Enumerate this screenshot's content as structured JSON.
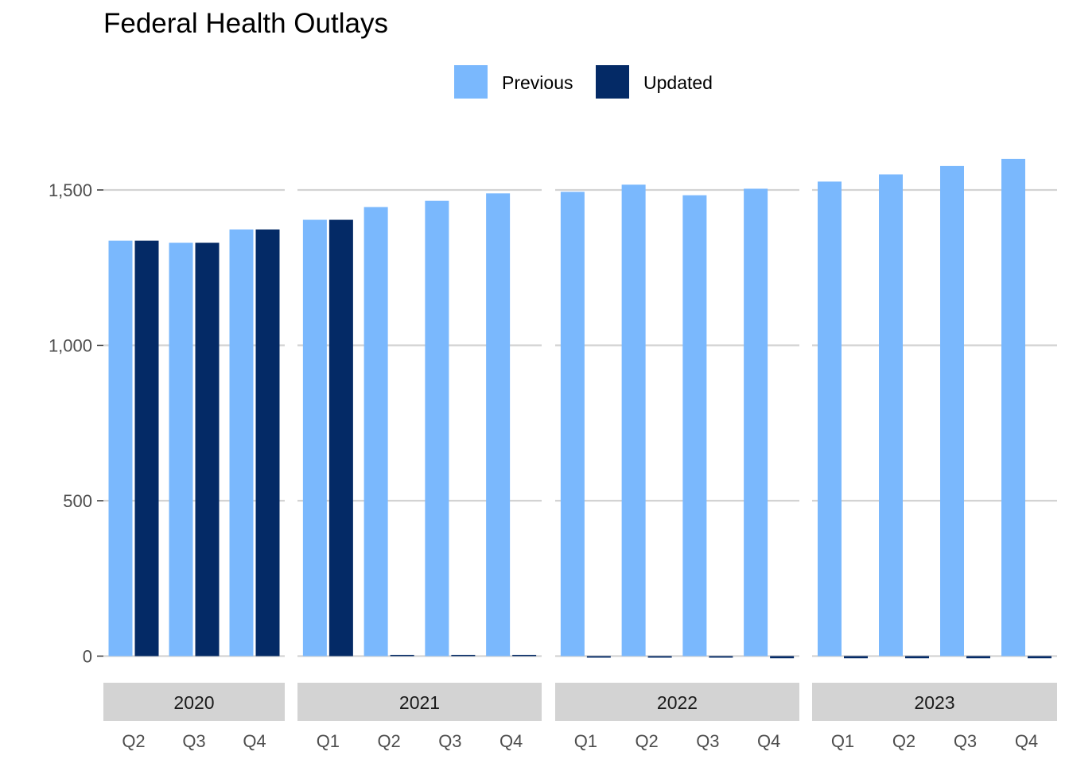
{
  "chart_data": {
    "type": "bar",
    "title": "Federal Health Outlays",
    "xlabel": "",
    "ylabel": "",
    "ylim": [
      0,
      1650
    ],
    "y_ticks": [
      0,
      500,
      1000,
      1500
    ],
    "y_tick_labels": [
      "0",
      "500",
      "1,000",
      "1,500"
    ],
    "grid": true,
    "legend_position": "top",
    "series": [
      {
        "name": "Previous",
        "color": "#7ab8fd"
      },
      {
        "name": "Updated",
        "color": "#042a66"
      }
    ],
    "facets": [
      {
        "label": "2020",
        "categories": [
          "Q2",
          "Q3",
          "Q4"
        ],
        "previous": [
          1337,
          1330,
          1373
        ],
        "updated": [
          1337,
          1330,
          1373
        ]
      },
      {
        "label": "2021",
        "categories": [
          "Q1",
          "Q2",
          "Q3",
          "Q4"
        ],
        "previous": [
          1404,
          1445,
          1465,
          1489
        ],
        "updated": [
          1404,
          4,
          4,
          4
        ]
      },
      {
        "label": "2022",
        "categories": [
          "Q1",
          "Q2",
          "Q3",
          "Q4"
        ],
        "previous": [
          1494,
          1517,
          1483,
          1504
        ],
        "updated": [
          -5,
          -5,
          -5,
          -7
        ]
      },
      {
        "label": "2023",
        "categories": [
          "Q1",
          "Q2",
          "Q3",
          "Q4"
        ],
        "previous": [
          1527,
          1550,
          1577,
          1600
        ],
        "updated": [
          -7,
          -7,
          -7,
          -7
        ]
      }
    ]
  }
}
